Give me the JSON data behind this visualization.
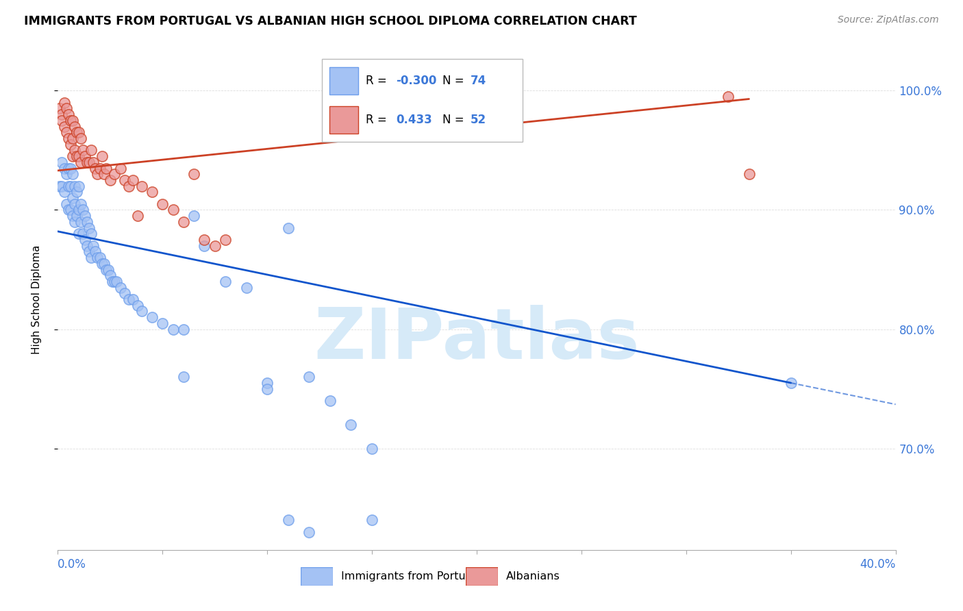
{
  "title": "IMMIGRANTS FROM PORTUGAL VS ALBANIAN HIGH SCHOOL DIPLOMA CORRELATION CHART",
  "source": "Source: ZipAtlas.com",
  "ylabel": "High School Diploma",
  "ytick_vals": [
    0.7,
    0.8,
    0.9,
    1.0
  ],
  "ytick_labels": [
    "70.0%",
    "80.0%",
    "90.0%",
    "100.0%"
  ],
  "xlim": [
    0.0,
    0.4
  ],
  "ylim": [
    0.615,
    1.035
  ],
  "legend_blue_r": "-0.300",
  "legend_blue_n": "74",
  "legend_pink_r": "0.433",
  "legend_pink_n": "52",
  "blue_dot_color": "#a4c2f4",
  "blue_edge_color": "#6d9eeb",
  "blue_line_color": "#1155cc",
  "pink_dot_color": "#ea9999",
  "pink_edge_color": "#cc4125",
  "pink_line_color": "#cc4125",
  "watermark": "ZIPatlas",
  "watermark_color": "#d6eaf8",
  "blue_scatter_x": [
    0.001,
    0.002,
    0.002,
    0.003,
    0.003,
    0.004,
    0.004,
    0.005,
    0.005,
    0.005,
    0.006,
    0.006,
    0.006,
    0.007,
    0.007,
    0.007,
    0.008,
    0.008,
    0.008,
    0.009,
    0.009,
    0.01,
    0.01,
    0.01,
    0.011,
    0.011,
    0.012,
    0.012,
    0.013,
    0.013,
    0.014,
    0.014,
    0.015,
    0.015,
    0.016,
    0.016,
    0.017,
    0.018,
    0.019,
    0.02,
    0.021,
    0.022,
    0.023,
    0.024,
    0.025,
    0.026,
    0.027,
    0.028,
    0.03,
    0.032,
    0.034,
    0.036,
    0.038,
    0.04,
    0.045,
    0.05,
    0.055,
    0.06,
    0.065,
    0.07,
    0.08,
    0.09,
    0.1,
    0.11,
    0.12,
    0.13,
    0.14,
    0.15,
    0.06,
    0.1,
    0.11,
    0.12,
    0.35,
    0.15
  ],
  "blue_scatter_y": [
    0.92,
    0.94,
    0.92,
    0.935,
    0.915,
    0.93,
    0.905,
    0.935,
    0.92,
    0.9,
    0.935,
    0.92,
    0.9,
    0.93,
    0.91,
    0.895,
    0.92,
    0.905,
    0.89,
    0.915,
    0.895,
    0.92,
    0.9,
    0.88,
    0.905,
    0.89,
    0.9,
    0.88,
    0.895,
    0.875,
    0.89,
    0.87,
    0.885,
    0.865,
    0.88,
    0.86,
    0.87,
    0.865,
    0.86,
    0.86,
    0.855,
    0.855,
    0.85,
    0.85,
    0.845,
    0.84,
    0.84,
    0.84,
    0.835,
    0.83,
    0.825,
    0.825,
    0.82,
    0.815,
    0.81,
    0.805,
    0.8,
    0.8,
    0.895,
    0.87,
    0.84,
    0.835,
    0.755,
    0.885,
    0.76,
    0.74,
    0.72,
    0.7,
    0.76,
    0.75,
    0.64,
    0.63,
    0.755,
    0.64
  ],
  "pink_scatter_x": [
    0.001,
    0.002,
    0.002,
    0.003,
    0.003,
    0.004,
    0.004,
    0.005,
    0.005,
    0.006,
    0.006,
    0.007,
    0.007,
    0.007,
    0.008,
    0.008,
    0.009,
    0.009,
    0.01,
    0.01,
    0.011,
    0.011,
    0.012,
    0.013,
    0.014,
    0.015,
    0.016,
    0.017,
    0.018,
    0.019,
    0.02,
    0.021,
    0.022,
    0.023,
    0.025,
    0.027,
    0.03,
    0.032,
    0.034,
    0.036,
    0.038,
    0.04,
    0.045,
    0.05,
    0.055,
    0.06,
    0.065,
    0.07,
    0.075,
    0.08,
    0.32,
    0.33
  ],
  "pink_scatter_y": [
    0.985,
    0.98,
    0.975,
    0.99,
    0.97,
    0.985,
    0.965,
    0.98,
    0.96,
    0.975,
    0.955,
    0.975,
    0.96,
    0.945,
    0.97,
    0.95,
    0.965,
    0.945,
    0.965,
    0.945,
    0.96,
    0.94,
    0.95,
    0.945,
    0.94,
    0.94,
    0.95,
    0.94,
    0.935,
    0.93,
    0.935,
    0.945,
    0.93,
    0.935,
    0.925,
    0.93,
    0.935,
    0.925,
    0.92,
    0.925,
    0.895,
    0.92,
    0.915,
    0.905,
    0.9,
    0.89,
    0.93,
    0.875,
    0.87,
    0.875,
    0.995,
    0.93
  ],
  "blue_line_x0": 0.0,
  "blue_line_y0": 0.882,
  "blue_line_x1": 0.35,
  "blue_line_y1": 0.755,
  "blue_line_x2": 0.4,
  "blue_line_y2": 0.737,
  "pink_line_x0": 0.0,
  "pink_line_y0": 0.933,
  "pink_line_x1": 0.33,
  "pink_line_y1": 0.993
}
